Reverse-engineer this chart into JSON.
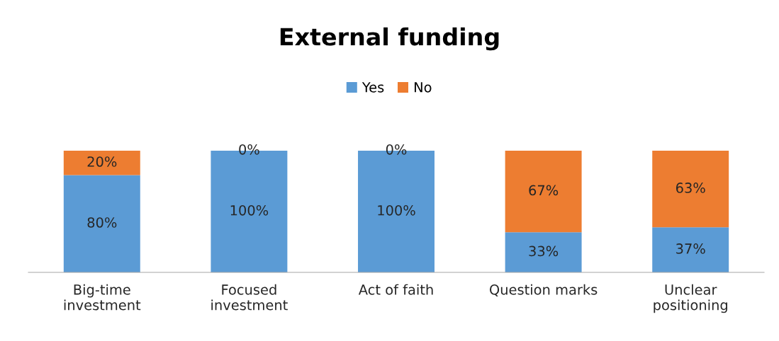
{
  "chart_data": {
    "type": "bar",
    "title": "External funding",
    "stacked": true,
    "legend": "top",
    "tick_labels": "x",
    "categories": [
      "Big-time investment",
      "Focused investment",
      "Act of faith",
      "Question marks",
      "Unclear positioning"
    ],
    "series": [
      {
        "name": "Yes",
        "color": "#5b9bd5",
        "values": [
          80,
          100,
          100,
          33,
          37
        ],
        "value_labels": [
          "80%",
          "100%",
          "100%",
          "33%",
          "37%"
        ]
      },
      {
        "name": "No",
        "color": "#ed7d31",
        "values": [
          20,
          0,
          0,
          67,
          63
        ],
        "value_labels": [
          "20%",
          "0%",
          "0%",
          "67%",
          "63%"
        ]
      }
    ]
  }
}
